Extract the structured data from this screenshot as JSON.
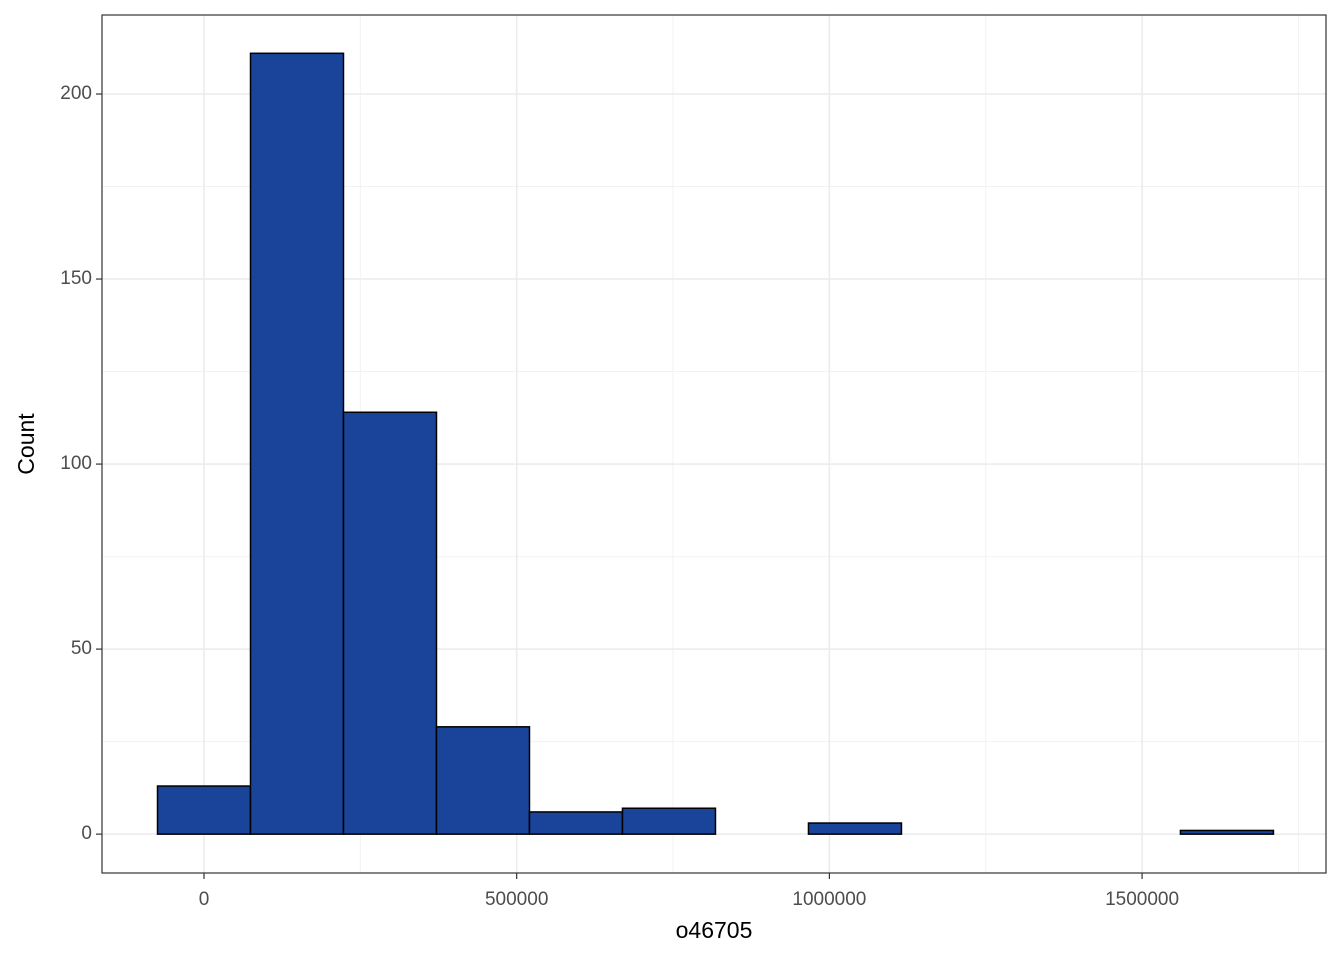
{
  "chart_data": {
    "type": "histogram",
    "x_label": "o46705",
    "y_label": "Count",
    "bins": [
      -74350,
      74350,
      223050,
      371750,
      520450,
      669150,
      817850,
      966550,
      1115250,
      1263950,
      1412650,
      1561350,
      1710050
    ],
    "values": [
      13,
      211,
      114,
      29,
      6,
      7,
      0,
      3,
      0,
      0,
      0,
      1
    ],
    "color": "#1a4499",
    "edge_color": "#000000",
    "xlim": [
      -163100,
      1794100
    ],
    "xticks": [
      0,
      500000,
      1000000,
      1500000
    ],
    "ylim": [
      -10.5,
      221.35
    ],
    "yticks": [
      0,
      50,
      100,
      150,
      200
    ],
    "grid": true
  }
}
